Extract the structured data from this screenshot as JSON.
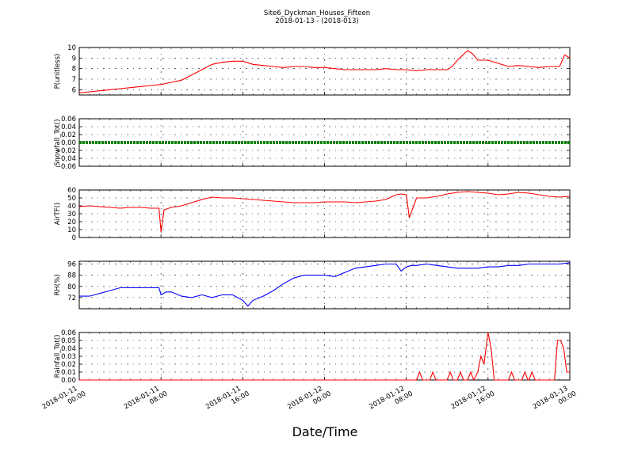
{
  "chart_data": {
    "type": "line",
    "title": "Site6_Dyckman_Houses_Fifteen",
    "subtitle": "2018-01-13 - (2018-013)",
    "xlabel": "Date/Time",
    "x_ticks": [
      {
        "lines": [
          "2018-01-11",
          "00:00"
        ]
      },
      {
        "lines": [
          "2018-01-11",
          "08:00"
        ]
      },
      {
        "lines": [
          "2018-01-11",
          "16:00"
        ]
      },
      {
        "lines": [
          "2018-01-12",
          "00:00"
        ]
      },
      {
        "lines": [
          "2018-01-12",
          "08:00"
        ]
      },
      {
        "lines": [
          "2018-01-12",
          "16:00"
        ]
      },
      {
        "lines": [
          "2018-01-13",
          "00:00"
        ]
      }
    ],
    "x_range_hours": [
      0,
      48
    ],
    "grid": true,
    "panels": [
      {
        "ylabel": "P(unitless)",
        "ylim": [
          5.5,
          10
        ],
        "yticks": [
          "6",
          "7",
          "8",
          "9",
          "10"
        ],
        "ytick_values": [
          6,
          7,
          8,
          9,
          10
        ],
        "color": "#ff0000",
        "series": {
          "x": [
            0,
            1,
            2,
            3,
            4,
            5,
            6,
            7,
            8,
            9,
            10,
            11,
            12,
            13,
            14,
            15,
            16,
            17,
            18,
            19,
            20,
            21,
            22,
            23,
            24,
            25,
            26,
            27,
            28,
            29,
            30,
            31,
            32,
            33,
            34,
            35,
            36,
            36.5,
            37,
            38,
            38.5,
            39,
            40,
            41,
            42,
            43,
            44,
            45,
            46,
            47,
            47.5,
            48
          ],
          "y": [
            5.7,
            5.8,
            5.9,
            6.0,
            6.1,
            6.2,
            6.3,
            6.4,
            6.5,
            6.7,
            6.9,
            7.4,
            7.9,
            8.4,
            8.6,
            8.7,
            8.7,
            8.4,
            8.3,
            8.2,
            8.1,
            8.2,
            8.2,
            8.1,
            8.1,
            8.0,
            7.9,
            7.9,
            7.9,
            7.9,
            8.0,
            7.9,
            7.9,
            7.8,
            7.9,
            7.9,
            7.9,
            8.2,
            8.8,
            9.7,
            9.4,
            8.8,
            8.8,
            8.5,
            8.2,
            8.3,
            8.2,
            8.1,
            8.2,
            8.2,
            9.3,
            9.0
          ]
        }
      },
      {
        "ylabel": "Snowfall_Tot()",
        "ylim": [
          -0.06,
          0.06
        ],
        "yticks": [
          "0.06",
          "0.04",
          "0.02",
          "0.00",
          "−0.02",
          "−0.04",
          "−0.06"
        ],
        "ytick_values": [
          0.06,
          0.04,
          0.02,
          0.0,
          -0.02,
          -0.04,
          -0.06
        ],
        "color": "#008000",
        "series": {
          "x": [
            0,
            48
          ],
          "y": [
            0,
            0
          ]
        }
      },
      {
        "ylabel": "AirTF()",
        "ylim": [
          0,
          60
        ],
        "yticks": [
          "60",
          "50",
          "40",
          "30",
          "20",
          "10",
          "0"
        ],
        "ytick_values": [
          60,
          50,
          40,
          30,
          20,
          10,
          0
        ],
        "color": "#ff0000",
        "series": {
          "x": [
            0,
            1,
            2,
            3,
            4,
            5,
            6,
            7,
            7.8,
            8,
            8.3,
            9,
            10,
            11,
            12,
            13,
            14,
            15,
            16,
            17,
            18,
            19,
            20,
            21,
            22,
            23,
            24,
            25,
            26,
            27,
            28,
            29,
            30,
            31,
            31.5,
            32,
            32.3,
            33,
            34,
            35,
            36,
            37,
            38,
            39,
            40,
            41,
            42,
            43,
            44,
            45,
            46,
            47,
            48
          ],
          "y": [
            39,
            40,
            39,
            38,
            37,
            38,
            38,
            37,
            37,
            7,
            35,
            38,
            40,
            44,
            48,
            51,
            50,
            50,
            49,
            48,
            47,
            46,
            45,
            44,
            44,
            44,
            45,
            45,
            45,
            44,
            45,
            46,
            48,
            54,
            55,
            54,
            25,
            50,
            50,
            52,
            55,
            57,
            58,
            57,
            56,
            54,
            55,
            57,
            56,
            54,
            52,
            51,
            52
          ]
        }
      },
      {
        "ylabel": "RH(%)",
        "ylim": [
          64,
          98
        ],
        "yticks": [
          "96",
          "88",
          "80",
          "72"
        ],
        "ytick_values": [
          96,
          88,
          80,
          72
        ],
        "color": "#0000ff",
        "series": {
          "x": [
            0,
            1,
            2,
            3,
            4,
            5,
            6,
            7,
            7.8,
            8,
            8.5,
            9,
            10,
            11,
            12,
            13,
            14,
            15,
            16,
            16.5,
            17,
            18,
            19,
            20,
            21,
            22,
            23,
            24,
            25,
            26,
            27,
            28,
            29,
            30,
            31,
            31.5,
            32,
            32.5,
            33,
            34,
            35,
            36,
            37,
            38,
            39,
            40,
            41,
            42,
            43,
            44,
            45,
            46,
            47,
            48
          ],
          "y": [
            73,
            73,
            75,
            77,
            79,
            79,
            79,
            79,
            79,
            74,
            76,
            76,
            73,
            72,
            74,
            72,
            74,
            74,
            70,
            66,
            70,
            73,
            77,
            82,
            86,
            88,
            88,
            88,
            87,
            90,
            93,
            94,
            95,
            96,
            96,
            91,
            94,
            95,
            95,
            96,
            95,
            94,
            93,
            93,
            93,
            94,
            94,
            95,
            95,
            96,
            96,
            96,
            96,
            97
          ]
        }
      },
      {
        "ylabel": "Rainfall_Tot()",
        "ylim": [
          0,
          0.06
        ],
        "yticks": [
          "0.06",
          "0.05",
          "0.04",
          "0.03",
          "0.02",
          "0.01",
          "0.00"
        ],
        "ytick_values": [
          0.06,
          0.05,
          0.04,
          0.03,
          0.02,
          0.01,
          0.0
        ],
        "color": "#ff0000",
        "series": {
          "x": [
            0,
            33,
            33.3,
            33.6,
            34.3,
            34.6,
            34.9,
            36,
            36.3,
            36.6,
            37,
            37.3,
            37.6,
            38,
            38.3,
            38.6,
            39,
            39.3,
            39.6,
            40,
            40.3,
            40.6,
            41,
            42,
            42.3,
            42.6,
            43.3,
            43.6,
            43.9,
            44,
            44.3,
            44.6,
            46.5,
            46.8,
            47.1,
            47.4,
            47.7,
            48
          ],
          "y": [
            0,
            0,
            0.01,
            0,
            0,
            0.01,
            0,
            0,
            0.01,
            0,
            0,
            0.01,
            0,
            0,
            0.01,
            0,
            0.01,
            0.03,
            0.02,
            0.06,
            0.04,
            0,
            0,
            0,
            0.01,
            0,
            0,
            0.01,
            0,
            0,
            0.01,
            0,
            0,
            0.05,
            0.05,
            0.04,
            0.01,
            0.01
          ]
        }
      }
    ]
  }
}
